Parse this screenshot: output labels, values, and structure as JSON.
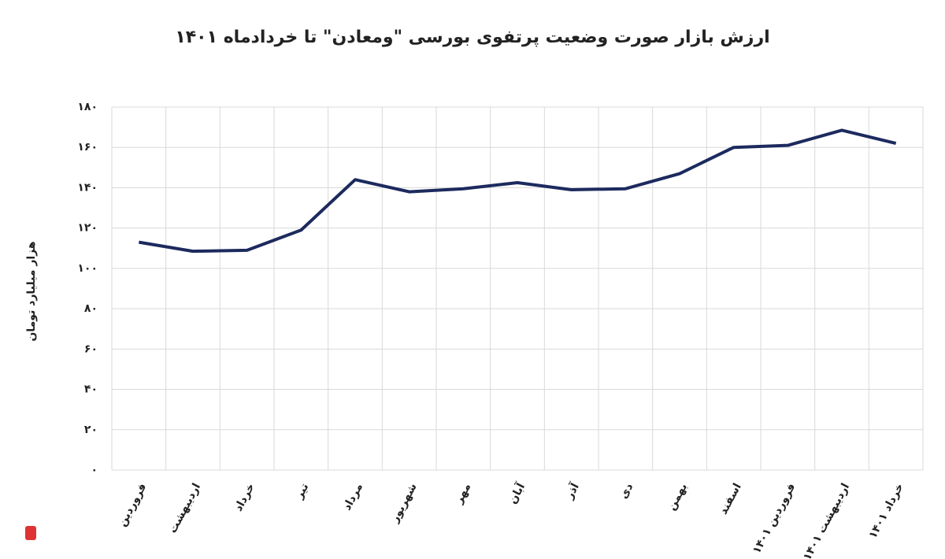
{
  "chart_data": {
    "type": "line",
    "title": "ارزش بازار صورت وضعیت پرتفوی بورسی \"ومعادن\" تا خردادماه ۱۴۰۱",
    "y_label": "هزار میلیارد تومان",
    "categories": [
      "فروردین",
      "اردیبهشت",
      "خرداد",
      "تیر",
      "مرداد",
      "شهریور",
      "مهر",
      "آبان",
      "آذر",
      "دی",
      "بهمن",
      "اسفند",
      "فروردین ۱۴۰۱",
      "اردیبهشت ۱۴۰۱",
      "خرداد ۱۴۰۱"
    ],
    "series": [
      {
        "name": "ارزش بازار",
        "color": "#1c2a5e",
        "values": [
          113,
          108.5,
          109,
          119,
          144,
          138,
          139.5,
          142.5,
          139,
          139.5,
          147,
          160,
          161,
          168.5,
          162
        ]
      }
    ],
    "ylim": [
      0,
      180
    ],
    "yticks": [
      {
        "value": 0,
        "label": "۰"
      },
      {
        "value": 20,
        "label": "۲۰"
      },
      {
        "value": 40,
        "label": "۴۰"
      },
      {
        "value": 60,
        "label": "۶۰"
      },
      {
        "value": 80,
        "label": "۸۰"
      },
      {
        "value": 100,
        "label": "۱۰۰"
      },
      {
        "value": 120,
        "label": "۱۲۰"
      },
      {
        "value": 140,
        "label": "۱۴۰"
      },
      {
        "value": 160,
        "label": "۱۶۰"
      },
      {
        "value": 180,
        "label": "۱۸۰"
      }
    ],
    "grid": true
  }
}
